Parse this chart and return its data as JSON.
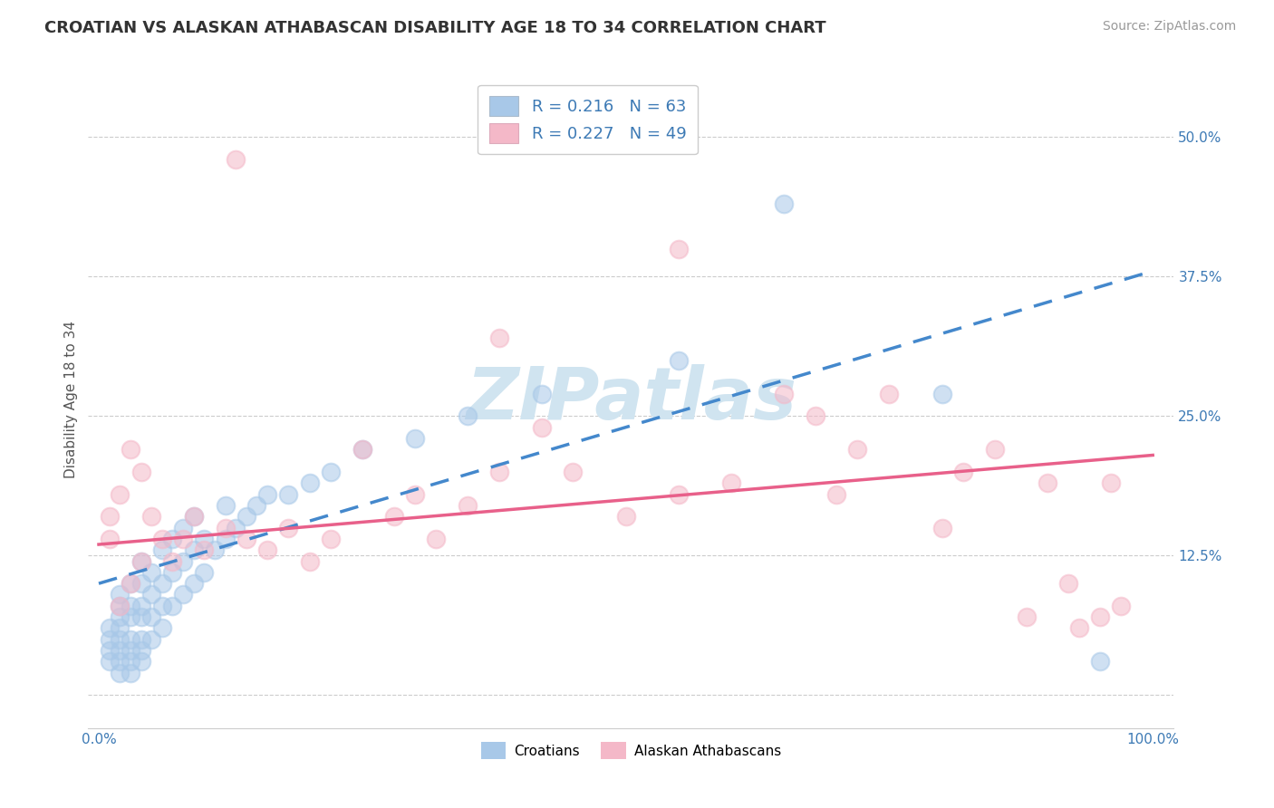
{
  "title": "CROATIAN VS ALASKAN ATHABASCAN DISABILITY AGE 18 TO 34 CORRELATION CHART",
  "source": "Source: ZipAtlas.com",
  "ylabel": "Disability Age 18 to 34",
  "y_ticks": [
    0.0,
    0.125,
    0.25,
    0.375,
    0.5
  ],
  "y_tick_labels": [
    "",
    "12.5%",
    "25.0%",
    "37.5%",
    "50.0%"
  ],
  "xlim": [
    -0.01,
    1.02
  ],
  "ylim": [
    -0.03,
    0.56
  ],
  "color_croatian": "#a8c8e8",
  "color_athabascan": "#f4b8c8",
  "color_trend_croatian": "#4488cc",
  "color_trend_athabascan": "#e8608a",
  "background_color": "#ffffff",
  "grid_color": "#cccccc",
  "watermark_color": "#d0e4f0",
  "title_fontsize": 13,
  "source_fontsize": 10,
  "axis_label_fontsize": 11,
  "tick_fontsize": 11,
  "legend_fontsize": 13,
  "croatian_x": [
    0.01,
    0.01,
    0.01,
    0.01,
    0.02,
    0.02,
    0.02,
    0.02,
    0.02,
    0.02,
    0.02,
    0.02,
    0.03,
    0.03,
    0.03,
    0.03,
    0.03,
    0.03,
    0.03,
    0.04,
    0.04,
    0.04,
    0.04,
    0.04,
    0.04,
    0.04,
    0.05,
    0.05,
    0.05,
    0.05,
    0.06,
    0.06,
    0.06,
    0.06,
    0.07,
    0.07,
    0.07,
    0.08,
    0.08,
    0.08,
    0.09,
    0.09,
    0.09,
    0.1,
    0.1,
    0.11,
    0.12,
    0.12,
    0.13,
    0.14,
    0.15,
    0.16,
    0.18,
    0.2,
    0.22,
    0.25,
    0.3,
    0.35,
    0.42,
    0.55,
    0.65,
    0.8,
    0.95
  ],
  "croatian_y": [
    0.03,
    0.04,
    0.05,
    0.06,
    0.02,
    0.03,
    0.04,
    0.05,
    0.06,
    0.07,
    0.08,
    0.09,
    0.02,
    0.03,
    0.04,
    0.05,
    0.07,
    0.08,
    0.1,
    0.03,
    0.04,
    0.05,
    0.07,
    0.08,
    0.1,
    0.12,
    0.05,
    0.07,
    0.09,
    0.11,
    0.06,
    0.08,
    0.1,
    0.13,
    0.08,
    0.11,
    0.14,
    0.09,
    0.12,
    0.15,
    0.1,
    0.13,
    0.16,
    0.11,
    0.14,
    0.13,
    0.14,
    0.17,
    0.15,
    0.16,
    0.17,
    0.18,
    0.18,
    0.19,
    0.2,
    0.22,
    0.23,
    0.25,
    0.27,
    0.3,
    0.44,
    0.27,
    0.03
  ],
  "athabascan_x": [
    0.01,
    0.01,
    0.02,
    0.02,
    0.03,
    0.03,
    0.04,
    0.04,
    0.05,
    0.06,
    0.07,
    0.08,
    0.09,
    0.1,
    0.12,
    0.14,
    0.16,
    0.18,
    0.2,
    0.22,
    0.25,
    0.28,
    0.3,
    0.32,
    0.35,
    0.38,
    0.42,
    0.45,
    0.5,
    0.55,
    0.6,
    0.65,
    0.68,
    0.7,
    0.72,
    0.75,
    0.8,
    0.82,
    0.85,
    0.88,
    0.9,
    0.92,
    0.93,
    0.95,
    0.96,
    0.97,
    0.13,
    0.38,
    0.55
  ],
  "athabascan_y": [
    0.14,
    0.16,
    0.08,
    0.18,
    0.1,
    0.22,
    0.12,
    0.2,
    0.16,
    0.14,
    0.12,
    0.14,
    0.16,
    0.13,
    0.15,
    0.14,
    0.13,
    0.15,
    0.12,
    0.14,
    0.22,
    0.16,
    0.18,
    0.14,
    0.17,
    0.2,
    0.24,
    0.2,
    0.16,
    0.18,
    0.19,
    0.27,
    0.25,
    0.18,
    0.22,
    0.27,
    0.15,
    0.2,
    0.22,
    0.07,
    0.19,
    0.1,
    0.06,
    0.07,
    0.19,
    0.08,
    0.48,
    0.32,
    0.4
  ],
  "trend_c_x0": 0.0,
  "trend_c_y0": 0.1,
  "trend_c_x1": 1.0,
  "trend_c_y1": 0.38,
  "trend_a_x0": 0.0,
  "trend_a_y0": 0.135,
  "trend_a_x1": 1.0,
  "trend_a_y1": 0.215
}
